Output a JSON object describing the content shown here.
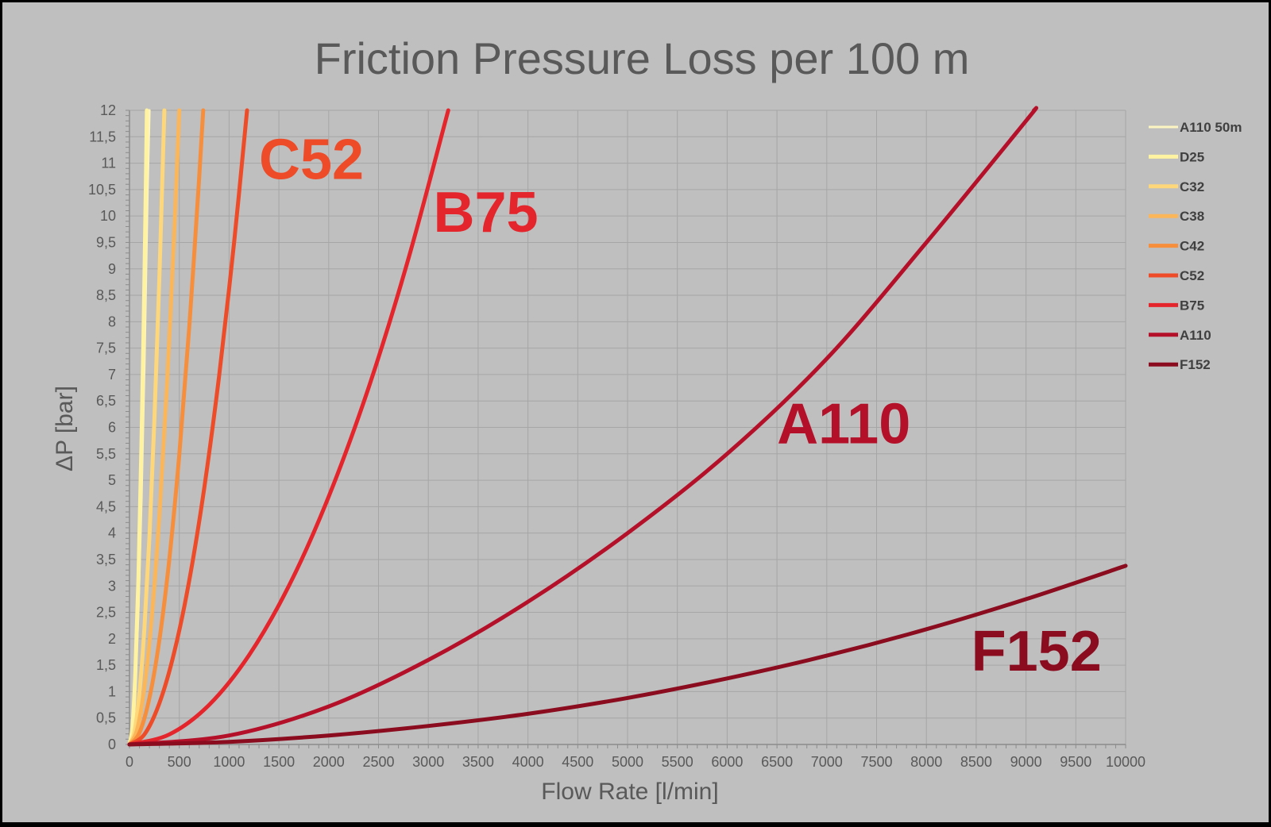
{
  "chart_data": {
    "type": "line",
    "title": "Friction Pressure Loss per 100 m",
    "xlabel": "Flow Rate [l/min]",
    "ylabel": "ΔP [bar]",
    "xlim": [
      0,
      10000
    ],
    "ylim": [
      0,
      12
    ],
    "x_ticks": [
      0,
      500,
      1000,
      1500,
      2000,
      2500,
      3000,
      3500,
      4000,
      4500,
      5000,
      5500,
      6000,
      6500,
      7000,
      7500,
      8000,
      8500,
      9000,
      9500,
      10000
    ],
    "y_ticks": [
      "0",
      "0,5",
      "1",
      "1,5",
      "2",
      "2,5",
      "3",
      "3,5",
      "4",
      "4,5",
      "5",
      "5,5",
      "6",
      "6,5",
      "7",
      "7,5",
      "8",
      "8,5",
      "9",
      "9,5",
      "10",
      "10,5",
      "11",
      "11,5",
      "12"
    ],
    "grid": true,
    "legend_position": "right",
    "series": [
      {
        "name": "A110 50m",
        "color": "#fcf5c2",
        "width": 3,
        "x": [
          0,
          30,
          60,
          90,
          120,
          150,
          180,
          200
        ],
        "y": [
          0,
          0.29,
          1.16,
          2.61,
          4.64,
          7.25,
          10.44,
          12
        ]
      },
      {
        "name": "D25",
        "color": "#fff2a0",
        "width": 5,
        "x": [
          0,
          30,
          60,
          90,
          120,
          150,
          175
        ],
        "y": [
          0,
          0.35,
          1.41,
          3.17,
          5.64,
          8.82,
          12
        ]
      },
      {
        "name": "C32",
        "color": "#fdd77a",
        "width": 5,
        "x": [
          0,
          50,
          100,
          150,
          200,
          250,
          300,
          350
        ],
        "y": [
          0,
          0.24,
          0.98,
          2.2,
          3.92,
          6.12,
          8.82,
          12
        ]
      },
      {
        "name": "C38",
        "color": "#fbb65a",
        "width": 5,
        "x": [
          0,
          75,
          150,
          225,
          300,
          375,
          450,
          500
        ],
        "y": [
          0,
          0.27,
          1.08,
          2.43,
          4.32,
          6.75,
          9.72,
          12
        ]
      },
      {
        "name": "C42",
        "color": "#f78e3c",
        "width": 5,
        "x": [
          0,
          100,
          200,
          300,
          400,
          500,
          600,
          700,
          740
        ],
        "y": [
          0,
          0.22,
          0.88,
          1.97,
          3.51,
          5.48,
          7.89,
          10.74,
          12
        ]
      },
      {
        "name": "C52",
        "color": "#ee4b28",
        "width": 5,
        "x": [
          0,
          150,
          300,
          450,
          600,
          750,
          900,
          1050,
          1180
        ],
        "y": [
          0,
          0.19,
          0.78,
          1.75,
          3.1,
          4.85,
          6.98,
          9.5,
          12
        ]
      },
      {
        "name": "B75",
        "color": "#e4252b",
        "width": 5,
        "x": [
          0,
          400,
          800,
          1200,
          1600,
          2000,
          2400,
          2800,
          3200
        ],
        "y": [
          0,
          0.19,
          0.75,
          1.69,
          3.0,
          4.69,
          6.75,
          9.19,
          12
        ]
      },
      {
        "name": "A110",
        "color": "#b5102a",
        "width": 5,
        "x": [
          0,
          1000,
          2000,
          3000,
          4000,
          5000,
          6000,
          7000,
          8000,
          9000,
          9080
        ],
        "y": [
          0,
          0.17,
          0.72,
          1.6,
          2.7,
          4.0,
          5.5,
          7.3,
          9.5,
          11.8,
          12
        ]
      },
      {
        "name": "F152",
        "color": "#8a0c1e",
        "width": 5,
        "x": [
          0,
          1000,
          2000,
          3000,
          4000,
          5000,
          6000,
          7000,
          8000,
          9000,
          10000
        ],
        "y": [
          0,
          0.05,
          0.17,
          0.35,
          0.58,
          0.88,
          1.25,
          1.68,
          2.18,
          2.75,
          3.38
        ]
      }
    ],
    "annotations": [
      {
        "text": "C52",
        "color": "#ee4b28",
        "x": 1300,
        "y": 10.7
      },
      {
        "text": "B75",
        "color": "#e4252b",
        "x": 3050,
        "y": 9.7
      },
      {
        "text": "A110",
        "color": "#b5102a",
        "x": 6500,
        "y": 5.7
      },
      {
        "text": "F152",
        "color": "#8a0c1e",
        "x": 8450,
        "y": 1.4
      }
    ]
  }
}
